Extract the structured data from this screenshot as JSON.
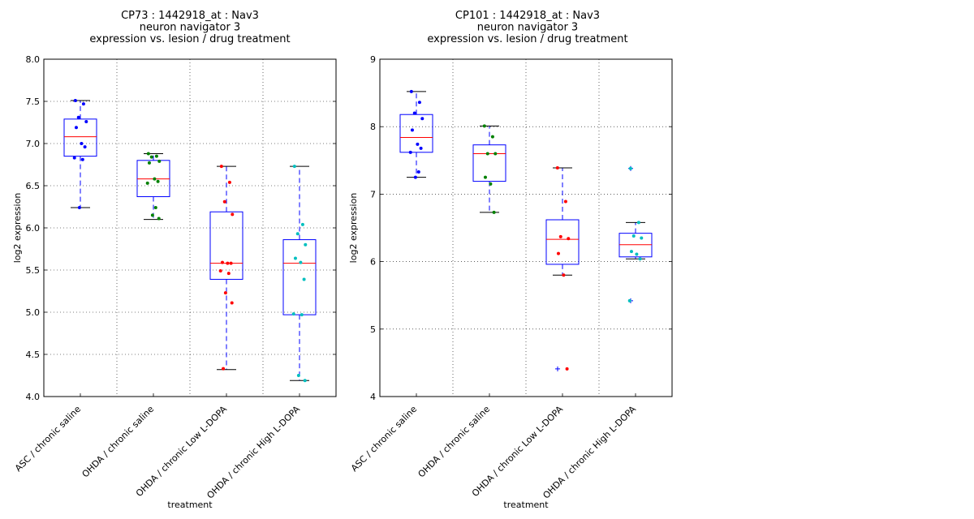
{
  "chart_data": [
    {
      "type": "boxplot",
      "title_lines": [
        "CP73 : 1442918_at : Nav3",
        "neuron navigator 3",
        "expression vs. lesion / drug treatment"
      ],
      "xlabel": "treatment",
      "ylabel": "log2 expression",
      "ylim": [
        4.0,
        8.0
      ],
      "yticks": [
        "4.0",
        "4.5",
        "5.0",
        "5.5",
        "6.0",
        "6.5",
        "7.0",
        "7.5",
        "8.0"
      ],
      "grid": true,
      "categories": [
        "ASC / chronic saline",
        "OHDA / chronic saline",
        "OHDA / chronic Low L-DOPA",
        "OHDA / chronic High L-DOPA"
      ],
      "boxes": [
        {
          "whisker_low": 6.24,
          "q1": 6.85,
          "median": 7.08,
          "q3": 7.29,
          "whisker_high": 7.51,
          "outliers": []
        },
        {
          "whisker_low": 6.1,
          "q1": 6.37,
          "median": 6.58,
          "q3": 6.8,
          "whisker_high": 6.88,
          "outliers": []
        },
        {
          "whisker_low": 4.32,
          "q1": 5.39,
          "median": 5.58,
          "q3": 6.19,
          "whisker_high": 6.73,
          "outliers": []
        },
        {
          "whisker_low": 4.19,
          "q1": 4.97,
          "median": 5.58,
          "q3": 5.86,
          "whisker_high": 6.73,
          "outliers": []
        }
      ],
      "points": [
        {
          "color": "#0000ff",
          "values": [
            7.51,
            7.47,
            7.31,
            7.26,
            7.19,
            7.0,
            6.96,
            6.83,
            6.81,
            6.24
          ]
        },
        {
          "color": "#008000",
          "values": [
            6.88,
            6.85,
            6.84,
            6.79,
            6.77,
            6.58,
            6.55,
            6.53,
            6.24,
            6.15,
            6.11
          ]
        },
        {
          "color": "#ff0000",
          "values": [
            6.73,
            6.54,
            6.31,
            6.16,
            5.59,
            5.58,
            5.58,
            5.49,
            5.46,
            5.23,
            5.11,
            4.33
          ]
        },
        {
          "color": "#00bfbf",
          "values": [
            6.73,
            6.04,
            5.93,
            5.8,
            5.64,
            5.59,
            5.39,
            4.98,
            4.97,
            4.25,
            4.19
          ]
        }
      ]
    },
    {
      "type": "boxplot",
      "title_lines": [
        "CP101 : 1442918_at : Nav3",
        "neuron navigator 3",
        "expression vs. lesion / drug treatment"
      ],
      "xlabel": "treatment",
      "ylabel": "log2 expression",
      "ylim": [
        4,
        9
      ],
      "yticks": [
        "4",
        "5",
        "6",
        "7",
        "8",
        "9"
      ],
      "grid": true,
      "categories": [
        "ASC / chronic saline",
        "OHDA / chronic saline",
        "OHDA / chronic Low L-DOPA",
        "OHDA / chronic High L-DOPA"
      ],
      "boxes": [
        {
          "whisker_low": 7.25,
          "q1": 7.62,
          "median": 7.84,
          "q3": 8.18,
          "whisker_high": 8.52,
          "outliers": []
        },
        {
          "whisker_low": 6.73,
          "q1": 7.19,
          "median": 7.6,
          "q3": 7.73,
          "whisker_high": 8.01,
          "outliers": []
        },
        {
          "whisker_low": 5.8,
          "q1": 5.96,
          "median": 6.33,
          "q3": 6.62,
          "whisker_high": 7.39,
          "outliers": [
            4.41
          ]
        },
        {
          "whisker_low": 6.04,
          "q1": 6.07,
          "median": 6.25,
          "q3": 6.42,
          "whisker_high": 6.58,
          "outliers": [
            7.38,
            5.42
          ]
        }
      ],
      "points": [
        {
          "color": "#0000ff",
          "values": [
            8.52,
            8.36,
            8.2,
            8.12,
            7.95,
            7.74,
            7.68,
            7.62,
            7.33,
            7.25
          ]
        },
        {
          "color": "#008000",
          "values": [
            8.01,
            7.85,
            7.6,
            7.6,
            7.25,
            7.15,
            6.73
          ]
        },
        {
          "color": "#ff0000",
          "values": [
            7.39,
            6.89,
            6.37,
            6.34,
            6.12,
            5.8,
            4.41
          ]
        },
        {
          "color": "#00bfbf",
          "values": [
            7.38,
            6.58,
            6.38,
            6.35,
            6.15,
            6.11,
            6.04,
            5.42
          ]
        }
      ]
    }
  ]
}
